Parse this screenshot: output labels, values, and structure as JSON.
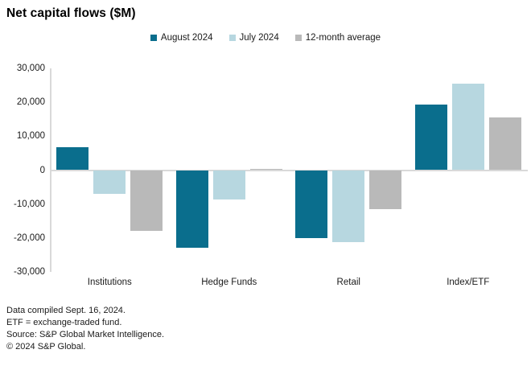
{
  "title": "Net capital flows ($M)",
  "chart_data": {
    "type": "bar",
    "title": "Net capital flows ($M)",
    "categories": [
      "Institutions",
      "Hedge Funds",
      "Retail",
      "Index/ETF"
    ],
    "series": [
      {
        "name": "August 2024",
        "color": "#0a6e8d",
        "values": [
          6800,
          -22800,
          -20000,
          19300
        ]
      },
      {
        "name": "July 2024",
        "color": "#b7d7e0",
        "values": [
          -7000,
          -8600,
          -21200,
          25500
        ]
      },
      {
        "name": "12-month average",
        "color": "#b9b9b9",
        "values": [
          -17900,
          300,
          -11600,
          15500
        ]
      }
    ],
    "xlabel": "",
    "ylabel": "",
    "ylim": [
      -30000,
      30000
    ],
    "ytick_step": 10000,
    "ytick_labels": [
      "30,000",
      "20,000",
      "10,000",
      "0",
      "-10,000",
      "-20,000",
      "-30,000"
    ],
    "legend_position": "top",
    "grid": false
  },
  "colors": {
    "axis_line": "#d9d9d9",
    "august_2024": "#0a6e8d",
    "july_2024": "#b7d7e0",
    "twelve_month_average": "#b9b9b9",
    "text": "#1a1a1a"
  },
  "footer": {
    "lines": [
      "Data compiled Sept. 16, 2024.",
      "ETF = exchange-traded fund.",
      "Source: S&P Global Market Intelligence.",
      "© 2024 S&P Global."
    ]
  }
}
